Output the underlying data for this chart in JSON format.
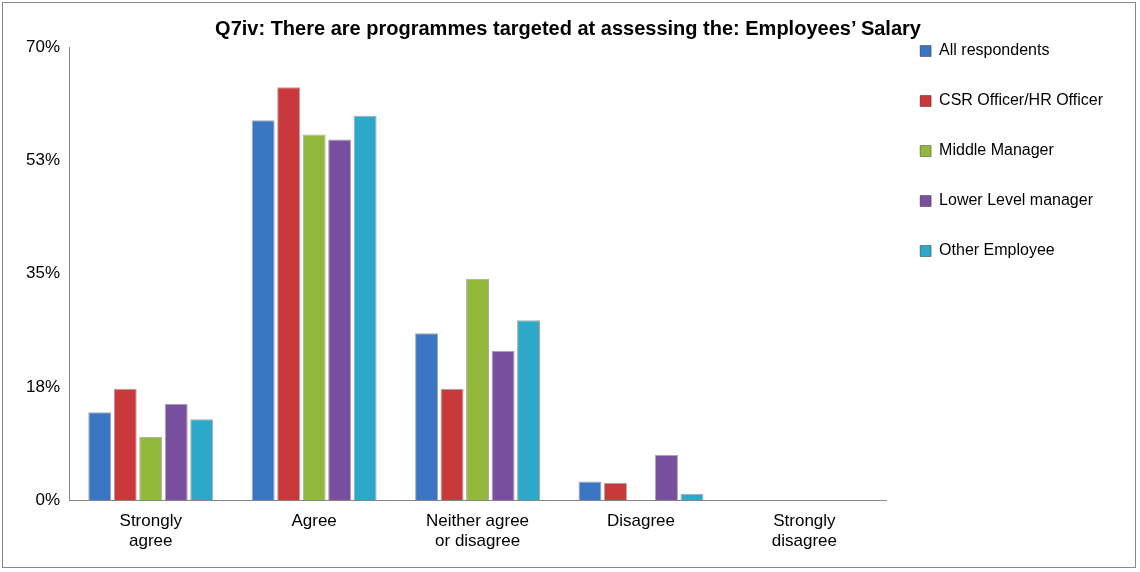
{
  "chart_data": {
    "type": "bar",
    "title": "Q7iv: There are programmes targeted at assessing the: Employees’ Salary",
    "categories": [
      "Strongly agree",
      "Agree",
      "Neither agree or disagree",
      "Disagree",
      "Strongly disagree"
    ],
    "series": [
      {
        "name": "All respondents",
        "color": "#3a75c4",
        "values": [
          13.6,
          58.7,
          25.8,
          2.9,
          0
        ]
      },
      {
        "name": "CSR Officer/HR Officer",
        "color": "#c9383a",
        "values": [
          17.2,
          63.8,
          17.2,
          2.7,
          0
        ]
      },
      {
        "name": "Middle Manager",
        "color": "#93b93c",
        "values": [
          9.8,
          56.5,
          34.2,
          0,
          0
        ]
      },
      {
        "name": "Lower Level manager",
        "color": "#7950a0",
        "values": [
          14.9,
          55.7,
          23.1,
          7.0,
          0
        ]
      },
      {
        "name": "Other Employee",
        "color": "#2ea8c8",
        "values": [
          12.5,
          59.4,
          27.8,
          1.0,
          0
        ]
      }
    ],
    "ylim": [
      0,
      70
    ],
    "yticks": [
      {
        "value": 0,
        "label": "0%"
      },
      {
        "value": 17.5,
        "label": "18%"
      },
      {
        "value": 35,
        "label": "35%"
      },
      {
        "value": 52.5,
        "label": "53%"
      },
      {
        "value": 70,
        "label": "70%"
      }
    ],
    "grid": false,
    "legend": "right"
  }
}
